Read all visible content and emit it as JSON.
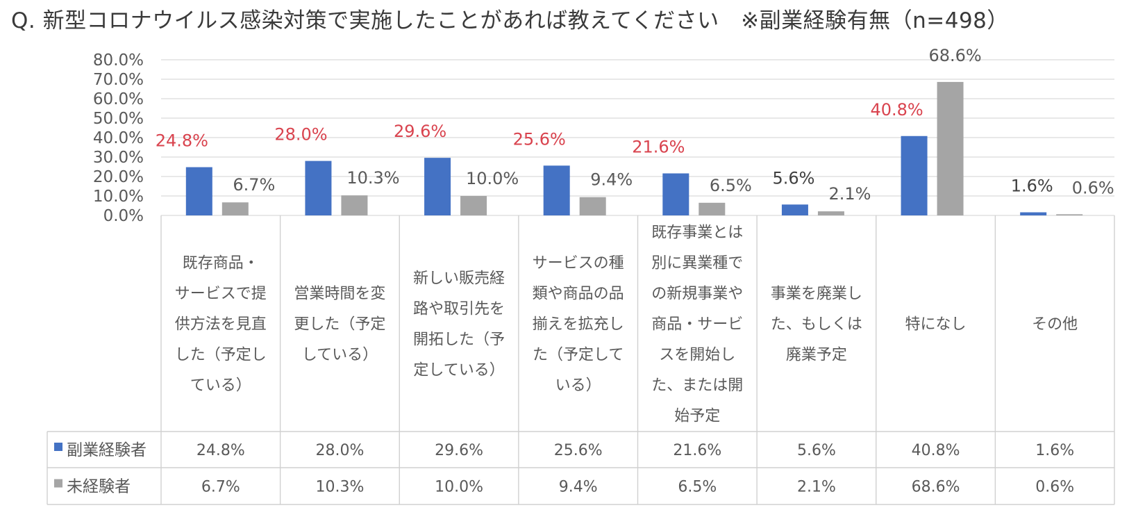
{
  "page": {
    "title": "Q. 新型コロナウイルス感染対策で実施したことがあれば教えてください　※副業経験有無（n=498）"
  },
  "chart_data": {
    "type": "bar",
    "title": "Q. 新型コロナウイルス感染対策で実施したことがあれば教えてください　※副業経験有無（n=498）",
    "ylim": [
      0,
      80
    ],
    "yticks": [
      "0.0%",
      "10.0%",
      "20.0%",
      "30.0%",
      "40.0%",
      "50.0%",
      "60.0%",
      "70.0%",
      "80.0%"
    ],
    "grid": true,
    "categories": [
      [
        "既存商品・",
        "サービスで提",
        "供方法を見直",
        "した（予定し",
        "ている）"
      ],
      [
        "営業時間を変",
        "更した（予定",
        "している）"
      ],
      [
        "新しい販売経",
        "路や取引先を",
        "開拓した（予",
        "定している）"
      ],
      [
        "サービスの種",
        "類や商品の品",
        "揃えを拡充し",
        "た（予定して",
        "いる）"
      ],
      [
        "既存事業とは",
        "別に異業種で",
        "の新規事業や",
        "商品・サービ",
        "スを開始し",
        "た、または開",
        "始予定"
      ],
      [
        "事業を廃業し",
        "た、もしくは",
        "廃業予定"
      ],
      [
        "特になし"
      ],
      [
        "その他"
      ]
    ],
    "series": [
      {
        "name": "副業経験者",
        "color": "#4472C4",
        "label_color": "#D9434E",
        "values": [
          24.8,
          28.0,
          29.6,
          25.6,
          21.6,
          5.6,
          40.8,
          1.6
        ],
        "labels": [
          "24.8%",
          "28.0%",
          "29.6%",
          "25.6%",
          "21.6%",
          "5.6%",
          "40.8%",
          "1.6%"
        ]
      },
      {
        "name": "未経験者",
        "color": "#A5A5A5",
        "label_color": "#595959",
        "values": [
          6.7,
          10.3,
          10.0,
          9.4,
          6.5,
          2.1,
          68.6,
          0.6
        ],
        "labels": [
          "6.7%",
          "10.3%",
          "10.0%",
          "9.4%",
          "6.5%",
          "2.1%",
          "68.6%",
          "0.6%"
        ]
      }
    ]
  }
}
